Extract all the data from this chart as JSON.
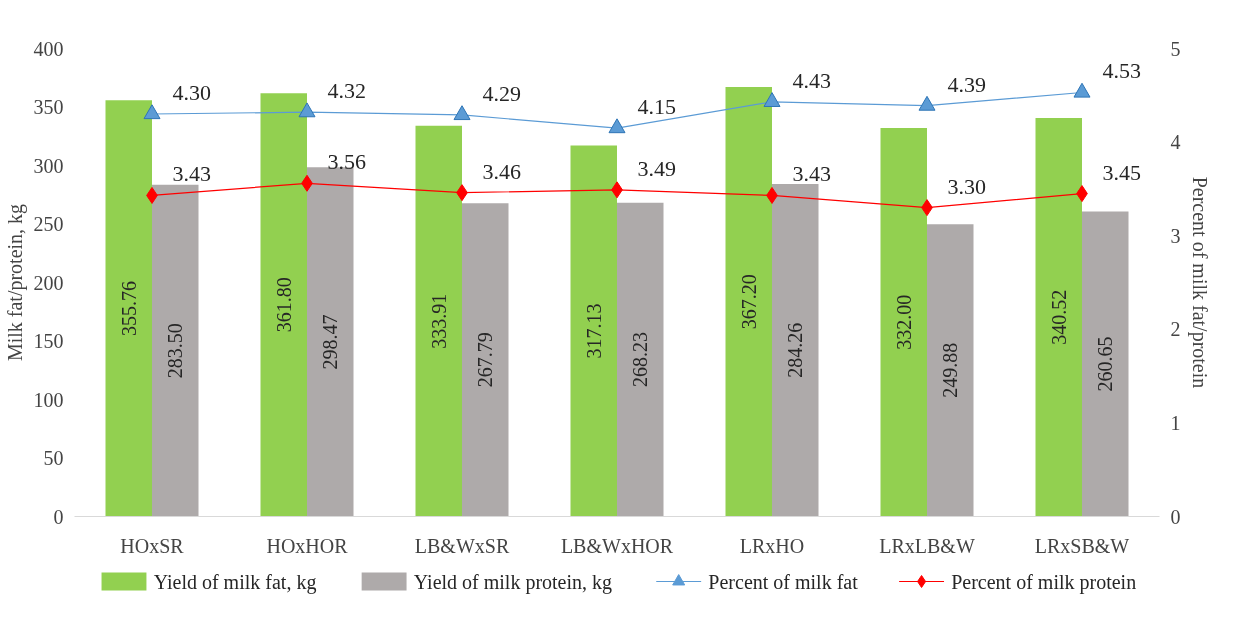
{
  "chart_data": {
    "type": "bar",
    "ylabel": "Milk fat/protein, kg",
    "y2label": "Percent of milk fat/protein",
    "categories": [
      "HOxSR",
      "HOxHOR",
      "LB&WxSR",
      "LB&WxHOR",
      "LRxHO",
      "LRxLB&W",
      "LRxSB&W"
    ],
    "series": [
      {
        "name": "Yield of milk fat, kg",
        "color": "#92d050",
        "values": [
          355.76,
          361.8,
          333.91,
          317.13,
          367.2,
          332.0,
          340.52
        ],
        "value_labels": [
          "355.76",
          "361.80",
          "333.91",
          "317.13",
          "367.20",
          "332.00",
          "340.52"
        ]
      },
      {
        "name": "Yield of milk protein, kg",
        "color": "#aeaaaa",
        "values": [
          283.5,
          298.47,
          267.79,
          268.23,
          284.26,
          249.88,
          260.65
        ],
        "value_labels": [
          "283.50",
          "298.47",
          "267.79",
          "268.23",
          "284.26",
          "249.88",
          "260.65"
        ]
      },
      {
        "name": "Percent of milk fat",
        "type": "line",
        "axis": "y2",
        "marker": "triangle",
        "color": "#5b9bd5",
        "values": [
          4.3,
          4.32,
          4.29,
          4.15,
          4.43,
          4.39,
          4.53
        ],
        "value_labels": [
          "4.30",
          "4.32",
          "4.29",
          "4.15",
          "4.43",
          "4.39",
          "4.53"
        ]
      },
      {
        "name": "Percent of milk protein",
        "type": "line",
        "axis": "y2",
        "marker": "diamond",
        "color": "#ff0000",
        "values": [
          3.43,
          3.56,
          3.46,
          3.49,
          3.43,
          3.3,
          3.45
        ],
        "value_labels": [
          "3.43",
          "3.56",
          "3.46",
          "3.49",
          "3.43",
          "3.30",
          "3.45"
        ]
      }
    ],
    "ylim": [
      0,
      400
    ],
    "yticks": [
      0,
      50,
      100,
      150,
      200,
      250,
      300,
      350,
      400
    ],
    "y2lim": [
      0,
      5
    ],
    "y2ticks": [
      0,
      1,
      2,
      3,
      4,
      5
    ],
    "grid": false,
    "legend": "bottom"
  }
}
